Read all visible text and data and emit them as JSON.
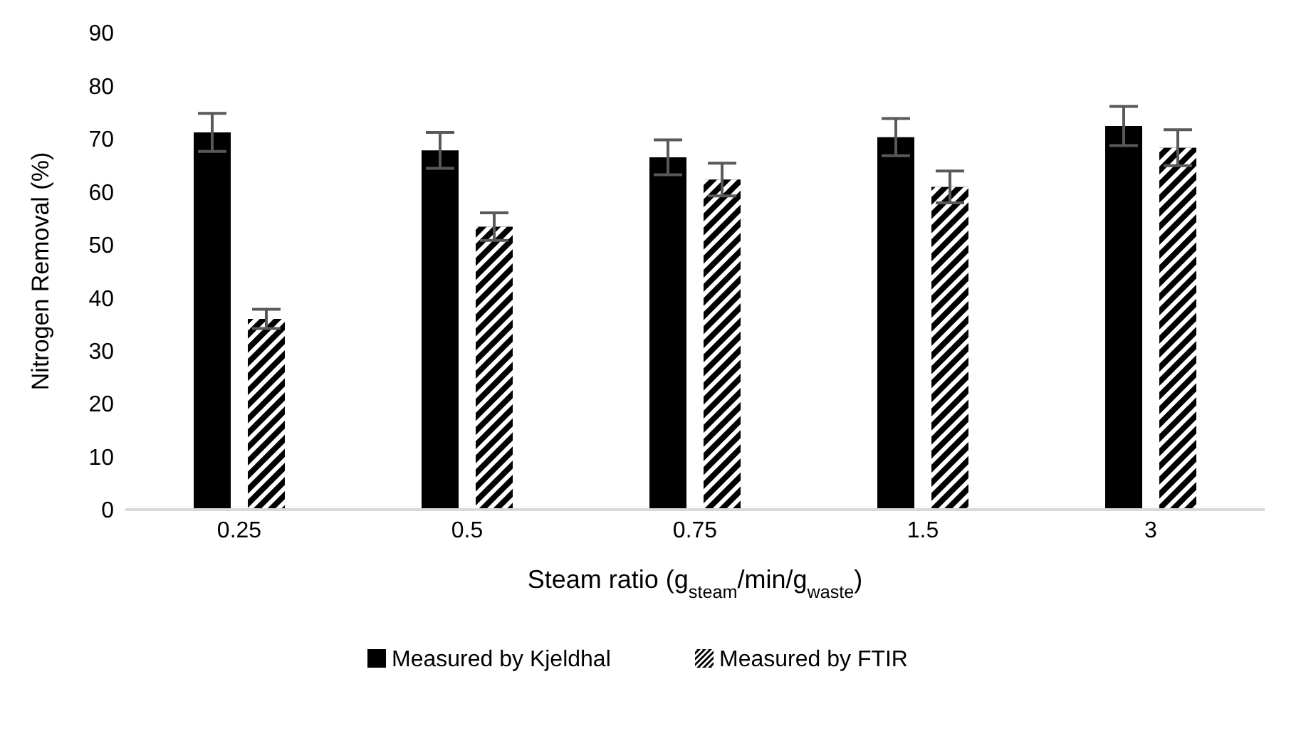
{
  "chart_data": {
    "type": "bar",
    "xlabel": "Steam ratio (g$_{steam}$/min/g$_{waste}$)",
    "ylabel": "Nitrogen Removal (%)",
    "categories": [
      "0.25",
      "0.5",
      "0.75",
      "1.5",
      "3"
    ],
    "series": [
      {
        "name": "Measured by Kjeldhal",
        "color": "#000000",
        "values": [
          71.2,
          67.8,
          66.5,
          70.3,
          72.4
        ],
        "errors": [
          3.6,
          3.4,
          3.3,
          3.5,
          3.7
        ]
      },
      {
        "name": "Measured by FTIR",
        "color": "#000000",
        "values": [
          36.0,
          53.4,
          62.3,
          60.9,
          68.3
        ],
        "errors": [
          1.8,
          2.6,
          3.1,
          3.0,
          3.4
        ]
      }
    ],
    "ylim": [
      0,
      90
    ],
    "yticks": [
      0,
      10,
      20,
      30,
      40,
      50,
      60,
      70,
      80,
      90
    ],
    "grid": false,
    "legend": "bottom"
  }
}
